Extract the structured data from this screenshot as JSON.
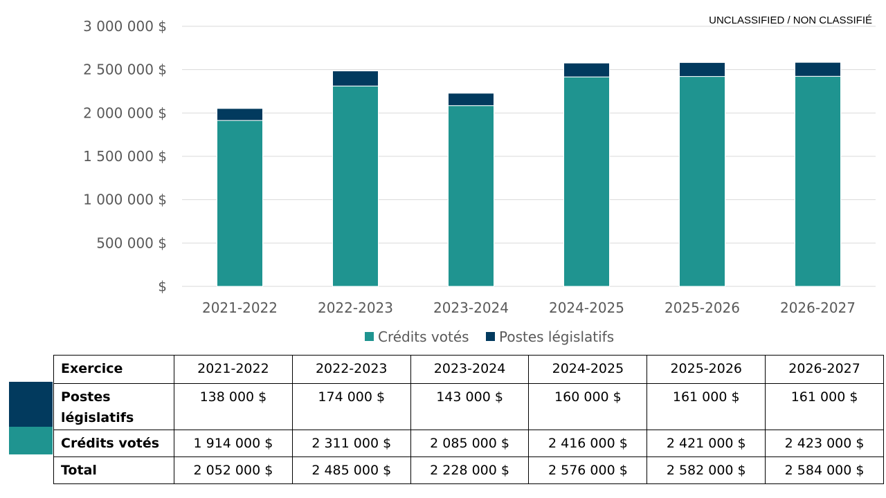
{
  "classification": "UNCLASSIFIED / NON CLASSIFIÉ",
  "colors": {
    "credits": "#1F9490",
    "postes": "#023A5E",
    "grid": "#D9D9D9",
    "axis_text": "#595959"
  },
  "chart_data": {
    "type": "bar",
    "stacked": true,
    "categories": [
      "2021-2022",
      "2022-2023",
      "2023-2024",
      "2024-2025",
      "2025-2026",
      "2026-2027"
    ],
    "series": [
      {
        "name": "Crédits votés",
        "values": [
          1914000,
          2311000,
          2085000,
          2416000,
          2421000,
          2423000
        ],
        "color": "#1F9490"
      },
      {
        "name": "Postes législatifs",
        "values": [
          138000,
          174000,
          143000,
          160000,
          161000,
          161000
        ],
        "color": "#023A5E"
      }
    ],
    "y_ticks": [
      {
        "value": 0,
        "label": "$"
      },
      {
        "value": 500000,
        "label": "500 000 $"
      },
      {
        "value": 1000000,
        "label": "1 000 000 $"
      },
      {
        "value": 1500000,
        "label": "1 500 000 $"
      },
      {
        "value": 2000000,
        "label": "2 000 000 $"
      },
      {
        "value": 2500000,
        "label": "2 500 000 $"
      },
      {
        "value": 3000000,
        "label": "3 000 000 $"
      }
    ],
    "ylim": [
      0,
      3000000
    ],
    "grid": true,
    "legend_position": "bottom"
  },
  "table": {
    "header": [
      "Exercice",
      "2021-2022",
      "2022-2023",
      "2023-2024",
      "2024-2025",
      "2025-2026",
      "2026-2027"
    ],
    "rows": [
      {
        "label": "Postes législatifs",
        "cells": [
          "138 000 $",
          "174 000 $",
          "143 000 $",
          "160 000 $",
          "161 000 $",
          "161 000 $"
        ]
      },
      {
        "label": "Crédits votés",
        "cells": [
          "1 914 000 $",
          "2 311 000 $",
          "2 085 000 $",
          "2 416 000 $",
          "2 421 000 $",
          "2 423 000 $"
        ]
      },
      {
        "label": "Total",
        "cells": [
          "2 052 000 $",
          "2 485 000 $",
          "2 228 000 $",
          "2 576 000 $",
          "2 582 000 $",
          "2 584 000 $"
        ]
      }
    ]
  }
}
